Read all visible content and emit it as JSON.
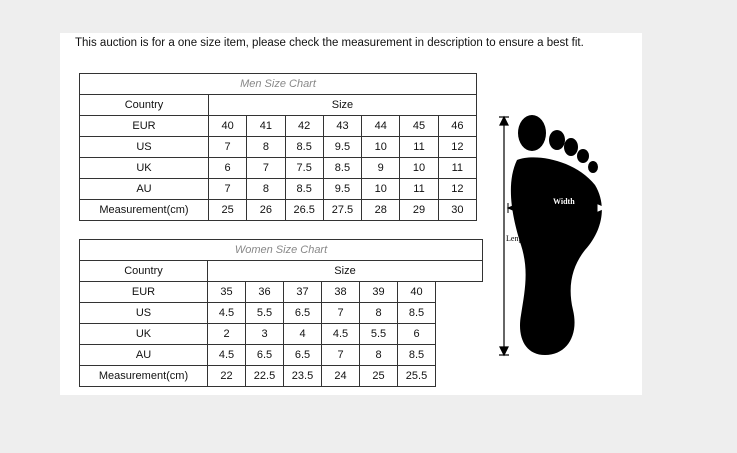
{
  "notice": "This auction is for a one size item, please check the measurement in description to ensure a best fit.",
  "men": {
    "title": "Men Size Chart",
    "country_header": "Country",
    "size_header": "Size",
    "rows": [
      {
        "label": "EUR",
        "values": [
          "40",
          "41",
          "42",
          "43",
          "44",
          "45",
          "46"
        ]
      },
      {
        "label": "US",
        "values": [
          "7",
          "8",
          "8.5",
          "9.5",
          "10",
          "11",
          "12"
        ]
      },
      {
        "label": "UK",
        "values": [
          "6",
          "7",
          "7.5",
          "8.5",
          "9",
          "10",
          "11"
        ]
      },
      {
        "label": "AU",
        "values": [
          "7",
          "8",
          "8.5",
          "9.5",
          "10",
          "11",
          "12"
        ]
      },
      {
        "label": "Measurement(cm)",
        "values": [
          "25",
          "26",
          "26.5",
          "27.5",
          "28",
          "29",
          "30"
        ]
      }
    ]
  },
  "women": {
    "title": "Women Size Chart",
    "country_header": "Country",
    "size_header": "Size",
    "rows": [
      {
        "label": "EUR",
        "values": [
          "35",
          "36",
          "37",
          "38",
          "39",
          "40"
        ]
      },
      {
        "label": "US",
        "values": [
          "4.5",
          "5.5",
          "6.5",
          "7",
          "8",
          "8.5"
        ]
      },
      {
        "label": "UK",
        "values": [
          "2",
          "3",
          "4",
          "4.5",
          "5.5",
          "6"
        ]
      },
      {
        "label": "AU",
        "values": [
          "4.5",
          "6.5",
          "6.5",
          "7",
          "8",
          "8.5"
        ]
      },
      {
        "label": "Measurement(cm)",
        "values": [
          "22",
          "22.5",
          "23.5",
          "24",
          "25",
          "25.5"
        ]
      }
    ]
  },
  "diagram": {
    "width_label": "Width",
    "length_label": "Length"
  }
}
